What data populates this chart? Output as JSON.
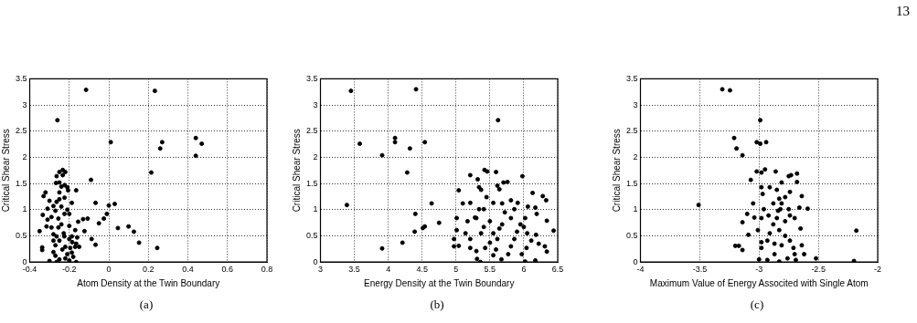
{
  "chart_data": [
    {
      "type": "scatter",
      "xlabel": "Atom Density at the Twin Boundary",
      "ylabel": "Critical Shear Stress",
      "annotations": [
        "(a)"
      ],
      "marker": "circle",
      "grid": true,
      "xlim": [
        -0.4,
        0.8
      ],
      "xticks": [
        -0.4,
        -0.2,
        0,
        0.2,
        0.4,
        0.6,
        0.8
      ],
      "ylim": [
        0,
        3.5
      ],
      "yticks": [
        0,
        0.5,
        1,
        1.5,
        2,
        2.5,
        3,
        3.5
      ],
      "series": [
        {
          "color": "#000000",
          "x": [
            -0.115,
            0.233,
            -0.26,
            0.01,
            0.27,
            0.26,
            0.44,
            0.47,
            0.44,
            0.215,
            -0.09,
            -0.165,
            -0.067,
            0.03,
            0,
            -0.01,
            -0.025,
            -0.107,
            -0.13,
            -0.05,
            -0.155,
            0.046,
            0.1,
            0.127,
            0.153,
            0.245,
            -0.087,
            -0.067,
            -0.123,
            -0.35,
            -0.337,
            -0.337,
            -0.3,
            -0.233,
            -0.25,
            -0.22,
            -0.264,
            -0.233,
            -0.25,
            -0.267,
            -0.224,
            -0.24,
            -0.21,
            -0.206,
            -0.32,
            -0.33,
            -0.25,
            -0.3,
            -0.28,
            -0.31,
            -0.334,
            -0.31,
            -0.315,
            -0.29,
            -0.28,
            -0.28,
            -0.27,
            -0.28,
            -0.27,
            -0.264,
            -0.22,
            -0.2,
            -0.165,
            -0.187,
            -0.17,
            -0.185,
            -0.2,
            -0.225,
            -0.25,
            -0.22,
            -0.235,
            -0.195,
            -0.16,
            -0.15,
            -0.17,
            -0.2,
            -0.24,
            -0.255,
            -0.224,
            -0.21,
            -0.24,
            -0.264,
            -0.25,
            -0.224,
            -0.187,
            -0.2,
            -0.27,
            -0.29,
            -0.255,
            -0.228,
            -0.264,
            -0.187,
            -0.165,
            -0.21,
            -0.25,
            -0.18
          ],
          "values": [
            3.29,
            3.27,
            2.71,
            2.29,
            2.29,
            2.17,
            2.37,
            2.26,
            2.03,
            1.71,
            1.57,
            1.37,
            1.13,
            1.11,
            1.08,
            0.92,
            0.83,
            0.83,
            0.82,
            0.74,
            0.77,
            0.65,
            0.68,
            0.58,
            0.37,
            0.27,
            0.44,
            0.33,
            0.59,
            0.59,
            0.28,
            0.23,
            0.02,
            1.76,
            1.72,
            1.72,
            1.64,
            1.66,
            1.52,
            1.51,
            1.47,
            1.44,
            1.43,
            1.37,
            1.33,
            1.26,
            1.33,
            1.17,
            1.07,
            1.02,
            0.9,
            0.81,
            0.68,
            0.66,
            0.53,
            0.41,
            0.32,
            0.19,
            0.12,
            0,
            0.07,
            0.03,
            0,
            0.18,
            0.29,
            0.38,
            0.44,
            0.49,
            0.41,
            0.29,
            0.24,
            0.27,
            0.47,
            0.29,
            0.61,
            0.69,
            0.72,
            0.83,
            0.92,
            1.0,
            1.06,
            1.15,
            1.2,
            1.23,
            1.13,
            0.92,
            0.98,
            0.86,
            0.66,
            0.55,
            0.49,
            0.49,
            0.35,
            0.15,
            0.05,
            0.1
          ]
        }
      ]
    },
    {
      "type": "scatter",
      "xlabel": "Energy Density at the Twin Boundary",
      "ylabel": "Critical Shear Stress",
      "annotations": [
        "(b)"
      ],
      "marker": "circle",
      "grid": true,
      "xlim": [
        3,
        6.5
      ],
      "xticks": [
        3,
        3.5,
        4,
        4.5,
        5,
        5.5,
        6,
        6.5
      ],
      "ylim": [
        0,
        3.5
      ],
      "yticks": [
        0,
        0.5,
        1,
        1.5,
        2,
        2.5,
        3,
        3.5
      ],
      "series": [
        {
          "color": "#000000",
          "x": [
            3.45,
            3.58,
            3.39,
            3.91,
            3.91,
            4.41,
            4.1,
            4.1,
            4.32,
            4.54,
            4.28,
            4.64,
            4.4,
            4.21,
            4.39,
            4.51,
            4.54,
            4.75,
            5.62,
            5.04,
            5.01,
            5.01,
            4.97,
            4.97,
            5.04,
            5.1,
            5.21,
            5.21,
            5.32,
            5.34,
            5.37,
            5.42,
            5.46,
            5.59,
            5.61,
            5.64,
            5.7,
            5.76,
            5.98,
            6.13,
            6.28,
            6.33,
            6.34,
            6.44,
            6.34,
            6.31,
            6.17,
            6.19,
            6.06,
            5.91,
            5.81,
            5.68,
            5.55,
            5.45,
            5.34,
            5.28,
            5.17,
            5.14,
            5.21,
            5.21,
            5.3,
            5.31,
            5.36,
            5.43,
            5.5,
            5.55,
            5.64,
            5.61,
            5.59,
            5.55,
            5.67,
            5.77,
            5.81,
            5.86,
            5.9,
            5.95,
            6.02,
            6.0,
            6.05,
            6.11,
            6.18,
            6.22,
            6.04,
            5.97,
            6.02,
            6.17,
            5.81,
            5.72,
            5.86,
            5.5,
            5.41,
            5.37,
            5.41,
            5.68,
            5.3
          ],
          "values": [
            3.27,
            2.26,
            1.09,
            2.04,
            0.26,
            3.3,
            2.37,
            2.29,
            2.17,
            2.29,
            1.71,
            1.12,
            0.92,
            0.37,
            0.58,
            0.65,
            0.68,
            0.75,
            2.71,
            1.37,
            0.84,
            0.61,
            0.44,
            0.3,
            0.31,
            1.12,
            1.13,
            1.66,
            1.58,
            1.43,
            1.38,
            1.76,
            1.73,
            1.72,
            1.46,
            1.39,
            1.52,
            1.53,
            1.64,
            1.32,
            1.26,
            1.18,
            0.79,
            0.6,
            0.2,
            0.3,
            1.04,
            0.92,
            1.06,
            1.13,
            1.18,
            1.12,
            1.13,
            1.24,
            1.01,
            0.85,
            0.78,
            0.55,
            0.44,
            0.27,
            0.21,
            0.06,
            0,
            0.27,
            0.37,
            0.55,
            0.64,
            0.44,
            0.24,
            0.13,
            0.05,
            0.15,
            0.3,
            0.44,
            0.58,
            0.72,
            0.84,
            0.67,
            0.55,
            0.41,
            0.52,
            0.35,
            0.27,
            0.15,
            0.01,
            0.03,
            0.84,
            0.95,
            1.01,
            0.78,
            0.67,
            0.55,
            1.01,
            0.72,
            0.84
          ]
        }
      ]
    },
    {
      "type": "scatter",
      "xlabel": "Maximum Value of Energy Associted with Single Atom",
      "ylabel": "Critical Shear Stress",
      "annotations": [
        "(c)",
        "13"
      ],
      "marker": "circle",
      "grid": true,
      "xlim": [
        -4,
        -2
      ],
      "xticks": [
        -4,
        -3.5,
        -3,
        -2.5,
        -2
      ],
      "ylim": [
        0,
        3.5
      ],
      "yticks": [
        0,
        0.5,
        1,
        1.5,
        2,
        2.5,
        3,
        3.5
      ],
      "series": [
        {
          "color": "#000000",
          "x": [
            -3.31,
            -3.245,
            -2.99,
            -3.21,
            -3.19,
            -3.14,
            -3.02,
            -2.99,
            -2.94,
            -3.51,
            -2.18,
            -2.2,
            -2.52,
            -3.07,
            -3.02,
            -2.98,
            -2.95,
            -2.86,
            -2.75,
            -2.73,
            -2.68,
            -2.68,
            -3.05,
            -3.1,
            -3.14,
            -3.09,
            -3.2,
            -3.17,
            -3.14,
            -2.98,
            -2.91,
            -2.81,
            -2.85,
            -2.97,
            -2.66,
            -2.59,
            -2.64,
            -2.74,
            -2.78,
            -2.83,
            -2.88,
            -2.96,
            -2.92,
            -2.98,
            -3.04,
            -3.01,
            -2.98,
            -2.98,
            -3.0,
            -2.93,
            -2.87,
            -2.83,
            -2.76,
            -2.69,
            -2.7,
            -2.71,
            -2.74,
            -2.78,
            -2.83,
            -2.88,
            -2.91,
            -2.93,
            -2.87,
            -2.81,
            -2.65,
            -2.62,
            -2.64,
            -2.78,
            -2.74,
            -2.7,
            -2.75,
            -2.82,
            -2.85,
            -2.84,
            -2.81
          ],
          "values": [
            3.3,
            3.28,
            2.71,
            2.37,
            2.17,
            2.04,
            2.29,
            2.26,
            2.29,
            1.09,
            0.6,
            0.02,
            0.07,
            1.57,
            1.73,
            1.71,
            1.77,
            1.73,
            1.64,
            1.66,
            1.69,
            1.53,
            1.12,
            0.92,
            0.76,
            0.52,
            0.31,
            0.31,
            0.23,
            1.43,
            1.43,
            1.52,
            1.38,
            1.3,
            1.04,
            1.02,
            1.26,
            1.34,
            1.24,
            1.21,
            1.12,
            1.01,
            0.89,
            0.84,
            0.85,
            0.61,
            0.38,
            0.27,
            0.05,
            0.04,
            0.15,
            0.01,
            0.07,
            0.04,
            0.15,
            0.27,
            0.41,
            0.5,
            0.61,
            0.72,
            0.55,
            0.41,
            0.35,
            0.32,
            0.64,
            0.15,
            0.32,
            0.78,
            0.89,
            0.84,
            1.01,
            1.01,
            0.84,
            0.98,
            1.12
          ]
        }
      ]
    }
  ]
}
